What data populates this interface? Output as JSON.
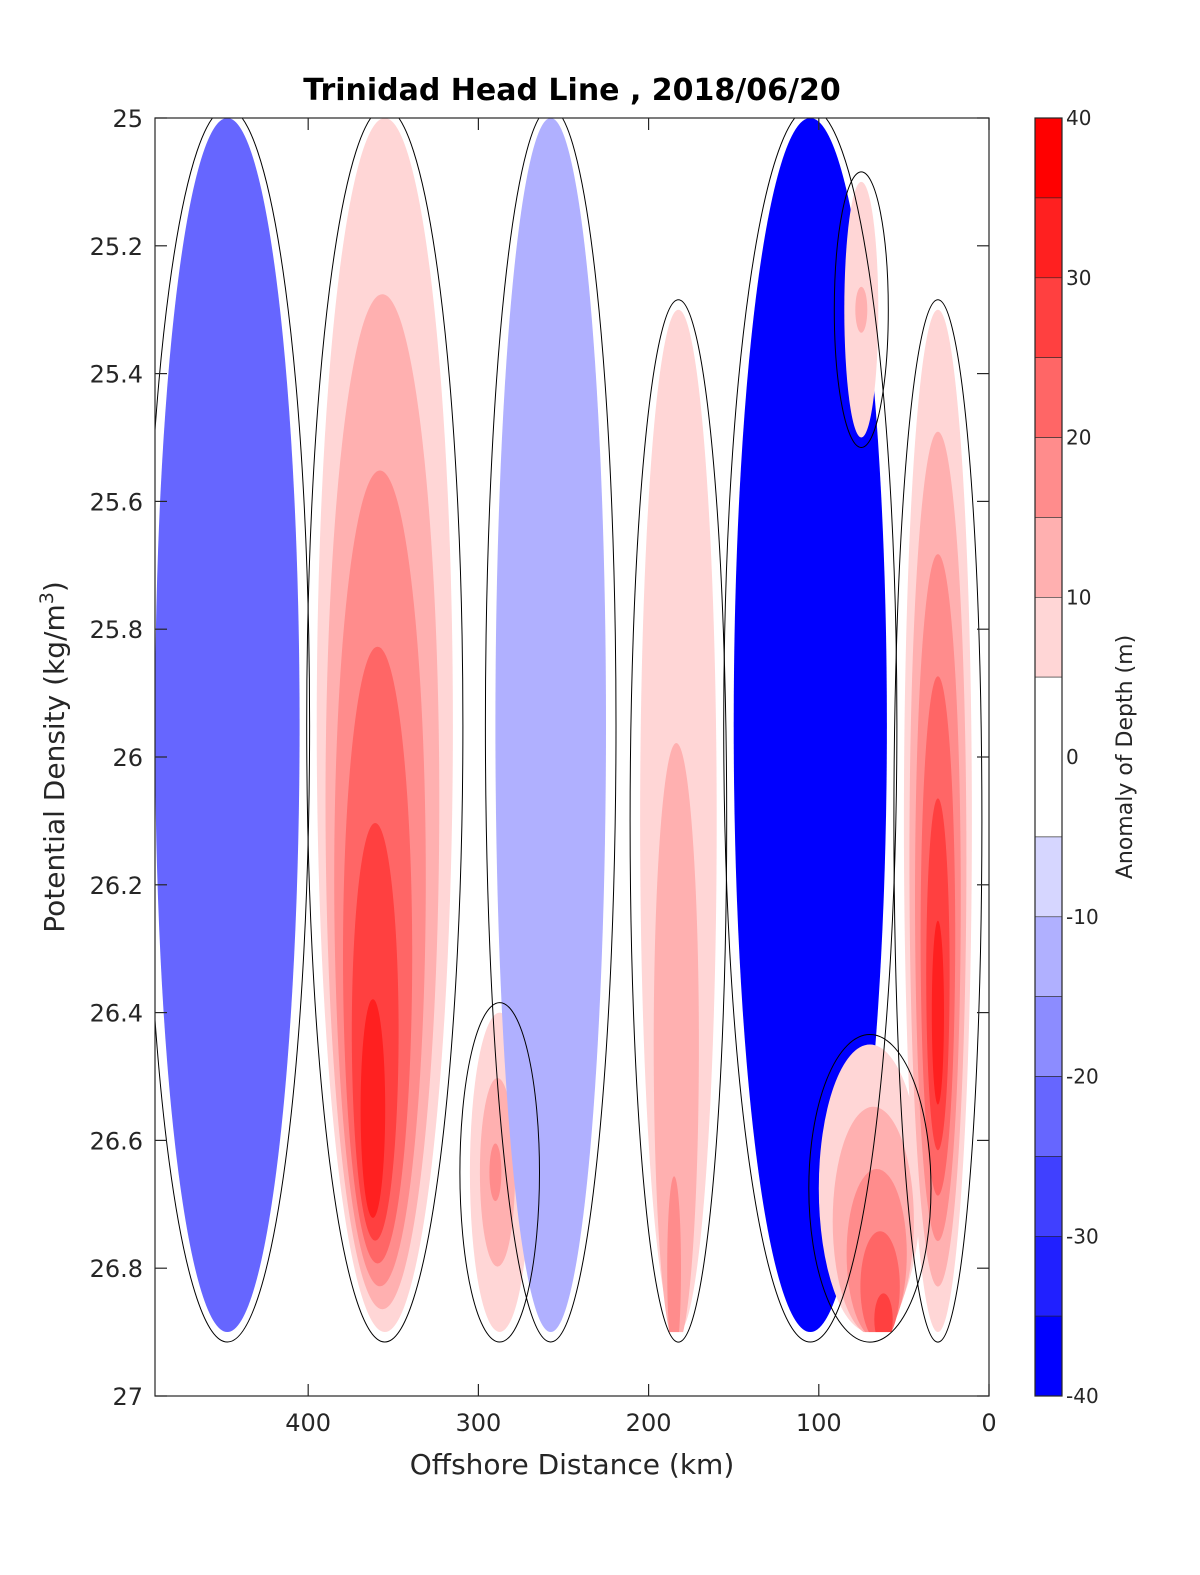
{
  "chart_data": {
    "type": "heatmap",
    "title": "Trinidad Head Line , 2018/06/20",
    "xlabel": "Offshore Distance (km)",
    "ylabel_main": "Potential Density (kg/m",
    "ylabel_sup": "3",
    "ylabel_close": ")",
    "colorbar_label": "Anomaly of Depth (m)",
    "x_reversed": true,
    "xlim": [
      490,
      0
    ],
    "ylim": [
      25,
      27
    ],
    "y_reversed": true,
    "x_ticks": [
      {
        "value": 400,
        "label": "400"
      },
      {
        "value": 300,
        "label": "300"
      },
      {
        "value": 200,
        "label": "200"
      },
      {
        "value": 100,
        "label": "100"
      },
      {
        "value": 0,
        "label": "0"
      }
    ],
    "y_ticks": [
      {
        "value": 25,
        "label": "25"
      },
      {
        "value": 25.2,
        "label": "25.2"
      },
      {
        "value": 25.4,
        "label": "25.4"
      },
      {
        "value": 25.6,
        "label": "25.6"
      },
      {
        "value": 25.8,
        "label": "25.8"
      },
      {
        "value": 26,
        "label": "26"
      },
      {
        "value": 26.2,
        "label": "26.2"
      },
      {
        "value": 26.4,
        "label": "26.4"
      },
      {
        "value": 26.6,
        "label": "26.6"
      },
      {
        "value": 26.8,
        "label": "26.8"
      },
      {
        "value": 27,
        "label": "27"
      }
    ],
    "colorbar_ticks": [
      {
        "value": 40,
        "label": "40"
      },
      {
        "value": 30,
        "label": "30"
      },
      {
        "value": 20,
        "label": "20"
      },
      {
        "value": 10,
        "label": "10"
      },
      {
        "value": 0,
        "label": "0"
      },
      {
        "value": -10,
        "label": "-10"
      },
      {
        "value": -20,
        "label": "-20"
      },
      {
        "value": -30,
        "label": "-30"
      },
      {
        "value": -40,
        "label": "-40"
      }
    ],
    "colorbar_levels": [
      {
        "range": [
          35,
          40
        ],
        "color": "#ff0000"
      },
      {
        "range": [
          30,
          35
        ],
        "color": "#ff2020"
      },
      {
        "range": [
          25,
          30
        ],
        "color": "#ff4040"
      },
      {
        "range": [
          20,
          25
        ],
        "color": "#ff6666"
      },
      {
        "range": [
          15,
          20
        ],
        "color": "#ff8c8c"
      },
      {
        "range": [
          10,
          15
        ],
        "color": "#ffb0b0"
      },
      {
        "range": [
          5,
          10
        ],
        "color": "#ffd6d6"
      },
      {
        "range": [
          -5,
          5
        ],
        "color": "#ffffff"
      },
      {
        "range": [
          -10,
          -5
        ],
        "color": "#d6d6ff"
      },
      {
        "range": [
          -15,
          -10
        ],
        "color": "#b0b0ff"
      },
      {
        "range": [
          -20,
          -15
        ],
        "color": "#8c8cff"
      },
      {
        "range": [
          -25,
          -20
        ],
        "color": "#6666ff"
      },
      {
        "range": [
          -30,
          -25
        ],
        "color": "#4040ff"
      },
      {
        "range": [
          -35,
          -30
        ],
        "color": "#2020ff"
      },
      {
        "range": [
          -40,
          -35
        ],
        "color": "#0000ff"
      }
    ],
    "data_y_max": 26.9,
    "bands": [
      {
        "name": "offshore-negative",
        "x_range": [
          490,
          405
        ],
        "sigma_range": [
          25,
          26.9
        ],
        "anomaly_range": [
          -20,
          -5
        ],
        "peak_anomaly": -20,
        "peak_x": 445,
        "peak_sigma": 26.6
      },
      {
        "name": "core-positive",
        "x_range": [
          395,
          315
        ],
        "sigma_range": [
          25,
          26.9
        ],
        "anomaly_range": [
          5,
          30
        ],
        "peak_anomaly": 30,
        "peak_x": 362,
        "peak_sigma": 26.55
      },
      {
        "name": "mid-positive-deep",
        "x_range": [
          305,
          270
        ],
        "sigma_range": [
          26.4,
          26.9
        ],
        "anomaly_range": [
          5,
          15
        ],
        "peak_anomaly": 15,
        "peak_x": 290,
        "peak_sigma": 26.65
      },
      {
        "name": "mid-negative",
        "x_range": [
          290,
          225
        ],
        "sigma_range": [
          25,
          26.9
        ],
        "anomaly_range": [
          -10,
          -5
        ],
        "peak_anomaly": -10,
        "peak_x": 250,
        "peak_sigma": 26.35
      },
      {
        "name": "mid-positive",
        "x_range": [
          205,
          160
        ],
        "sigma_range": [
          25.3,
          26.9
        ],
        "anomaly_range": [
          5,
          15
        ],
        "peak_anomaly": 15,
        "peak_x": 185,
        "peak_sigma": 26.8
      },
      {
        "name": "nearshore-negative",
        "x_range": [
          150,
          60
        ],
        "sigma_range": [
          25,
          26.9
        ],
        "anomaly_range": [
          -35,
          -5
        ],
        "peak_anomaly": -35,
        "peak_x": 108,
        "peak_sigma": 25.15
      },
      {
        "name": "shelf-positive-deep",
        "x_range": [
          100,
          40
        ],
        "sigma_range": [
          26.45,
          26.9
        ],
        "anomaly_range": [
          5,
          25
        ],
        "peak_anomaly": 25,
        "peak_x": 62,
        "peak_sigma": 26.88
      },
      {
        "name": "shelf-positive-upper",
        "x_range": [
          85,
          65
        ],
        "sigma_range": [
          25.1,
          25.5
        ],
        "anomaly_range": [
          5,
          10
        ],
        "peak_anomaly": 10,
        "peak_x": 75,
        "peak_sigma": 25.3
      },
      {
        "name": "coastal-positive",
        "x_range": [
          50,
          10
        ],
        "sigma_range": [
          25.3,
          26.9
        ],
        "anomaly_range": [
          5,
          30
        ],
        "peak_anomaly": 30,
        "peak_x": 30,
        "peak_sigma": 26.4
      }
    ],
    "grid": false,
    "legend": "colorbar-right"
  }
}
